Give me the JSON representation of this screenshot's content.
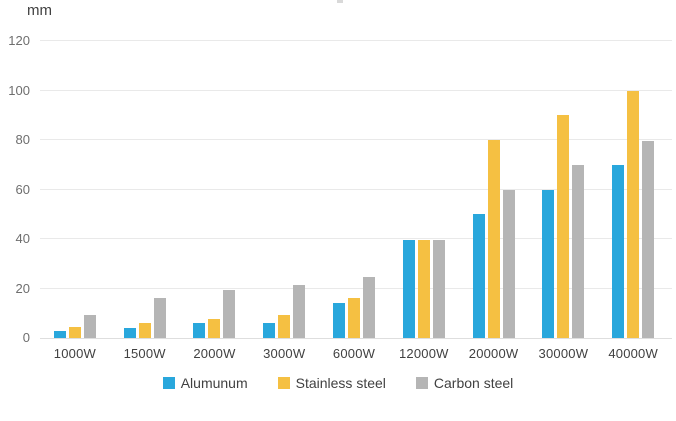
{
  "chart_data": {
    "type": "bar",
    "title": "",
    "unit_label": "mm",
    "categories": [
      "1000W",
      "1500W",
      "2000W",
      "3000W",
      "6000W",
      "12000W",
      "20000W",
      "30000W",
      "40000W"
    ],
    "series": [
      {
        "name": "Alumunum",
        "color": "#29a7dc",
        "values": [
          3,
          4,
          6,
          6,
          14,
          39.5,
          50,
          60,
          70
        ]
      },
      {
        "name": "Stainless steel",
        "color": "#f5c042",
        "values": [
          4.5,
          6,
          7.5,
          9.5,
          16,
          39.5,
          80,
          90,
          100
        ]
      },
      {
        "name": "Carbon steel",
        "color": "#b5b5b5",
        "values": [
          9.5,
          16,
          19.5,
          21.5,
          24.5,
          39.5,
          60,
          70,
          79.5
        ]
      }
    ],
    "y_axis": {
      "min": 0,
      "max": 120,
      "tick_step": 20,
      "ticks": [
        0,
        20,
        40,
        60,
        80,
        100,
        120
      ]
    },
    "grid": true,
    "legend_position": "bottom",
    "grid_color": "#e9e9e9",
    "axis_line_color": "#dedede",
    "tick_label_color": "#6e6e6e",
    "category_label_color": "#414141"
  }
}
